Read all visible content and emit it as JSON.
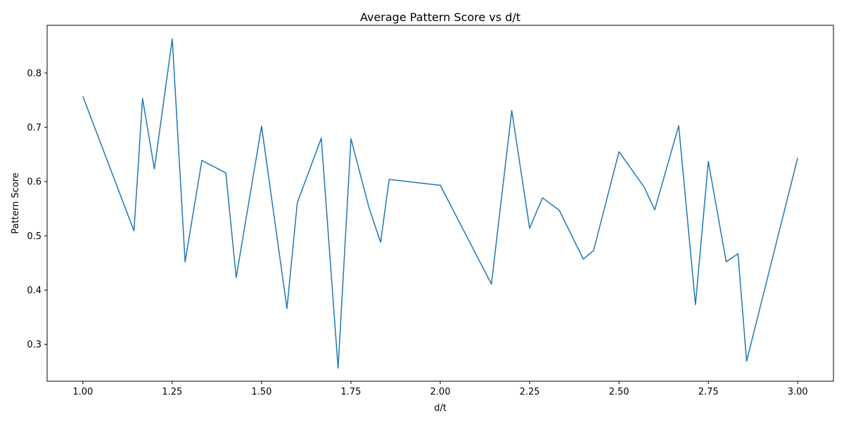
{
  "chart_data": {
    "type": "line",
    "title": "Average Pattern Score vs d/t",
    "xlabel": "d/t",
    "ylabel": "Pattern Score",
    "xlim": [
      0.9,
      3.1
    ],
    "ylim": [
      0.232,
      0.888
    ],
    "xticks": [
      1.0,
      1.25,
      1.5,
      1.75,
      2.0,
      2.25,
      2.5,
      2.75,
      3.0
    ],
    "xtick_labels": [
      "1.00",
      "1.25",
      "1.50",
      "1.75",
      "2.00",
      "2.25",
      "2.50",
      "2.75",
      "3.00"
    ],
    "yticks": [
      0.3,
      0.4,
      0.5,
      0.6,
      0.7,
      0.8
    ],
    "ytick_labels": [
      "0.3",
      "0.4",
      "0.5",
      "0.6",
      "0.7",
      "0.8"
    ],
    "grid": false,
    "line_color": "#1f77b4",
    "series": [
      {
        "x": [
          1.0,
          1.143,
          1.167,
          1.2,
          1.25,
          1.286,
          1.333,
          1.4,
          1.429,
          1.5,
          1.571,
          1.6,
          1.667,
          1.714,
          1.75,
          1.8,
          1.833,
          1.857,
          2.0,
          2.143,
          2.2,
          2.25,
          2.286,
          2.333,
          2.4,
          2.429,
          2.5,
          2.571,
          2.6,
          2.667,
          2.714,
          2.75,
          2.8,
          2.833,
          2.857,
          3.0
        ],
        "y": [
          0.757,
          0.509,
          0.753,
          0.623,
          0.863,
          0.452,
          0.639,
          0.616,
          0.423,
          0.702,
          0.366,
          0.561,
          0.68,
          0.256,
          0.679,
          0.553,
          0.488,
          0.604,
          0.593,
          0.411,
          0.731,
          0.514,
          0.57,
          0.547,
          0.457,
          0.473,
          0.655,
          0.589,
          0.548,
          0.703,
          0.373,
          0.637,
          0.452,
          0.467,
          0.269,
          0.644
        ]
      }
    ]
  }
}
